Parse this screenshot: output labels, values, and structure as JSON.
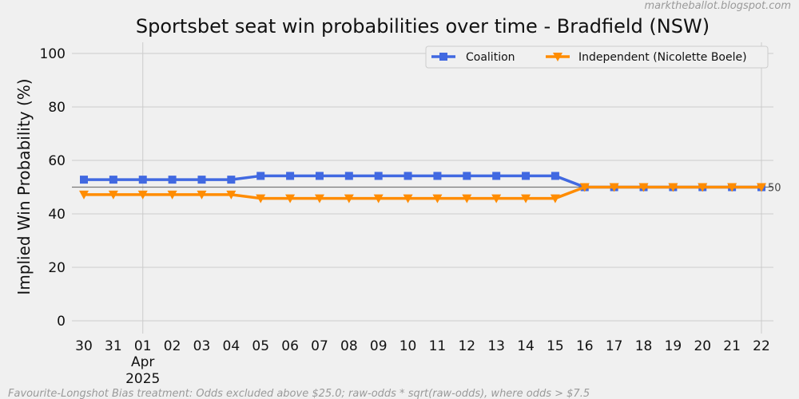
{
  "chart_data": {
    "type": "line",
    "title": "Sportsbet seat win probabilities over time - Bradfield (NSW)",
    "ylabel": "Implied Win Probability (%)",
    "xlabel": "",
    "ylim": [
      0,
      100
    ],
    "yticks": [
      0,
      20,
      40,
      60,
      80,
      100
    ],
    "x": [
      "30",
      "31",
      "01",
      "02",
      "03",
      "04",
      "05",
      "06",
      "07",
      "08",
      "09",
      "10",
      "11",
      "12",
      "13",
      "14",
      "15",
      "16",
      "17",
      "18",
      "19",
      "20",
      "21",
      "22"
    ],
    "x_month_label": {
      "index": 2,
      "month": "Apr",
      "year": "2025"
    },
    "grid": true,
    "legend_position": "top-right",
    "reference_line": {
      "value": 50,
      "label": "50"
    },
    "series": [
      {
        "name": "Coalition",
        "color": "#4169e1",
        "marker": "square",
        "values": [
          52.8,
          52.8,
          52.8,
          52.8,
          52.8,
          52.8,
          54.2,
          54.2,
          54.2,
          54.2,
          54.2,
          54.2,
          54.2,
          54.2,
          54.2,
          54.2,
          54.2,
          50,
          50,
          50,
          50,
          50,
          50,
          50
        ]
      },
      {
        "name": "Independent (Nicolette Boele)",
        "color": "#ff8c00",
        "marker": "triangle-down",
        "values": [
          47.2,
          47.2,
          47.2,
          47.2,
          47.2,
          47.2,
          45.8,
          45.8,
          45.8,
          45.8,
          45.8,
          45.8,
          45.8,
          45.8,
          45.8,
          45.8,
          45.8,
          50,
          50,
          50,
          50,
          50,
          50,
          50
        ]
      }
    ],
    "footer": "Favourite-Longshot Bias treatment: Odds excluded above $25.0; raw-odds * sqrt(raw-odds), where odds > $7.5",
    "credit": "marktheballot.blogspot.com"
  }
}
